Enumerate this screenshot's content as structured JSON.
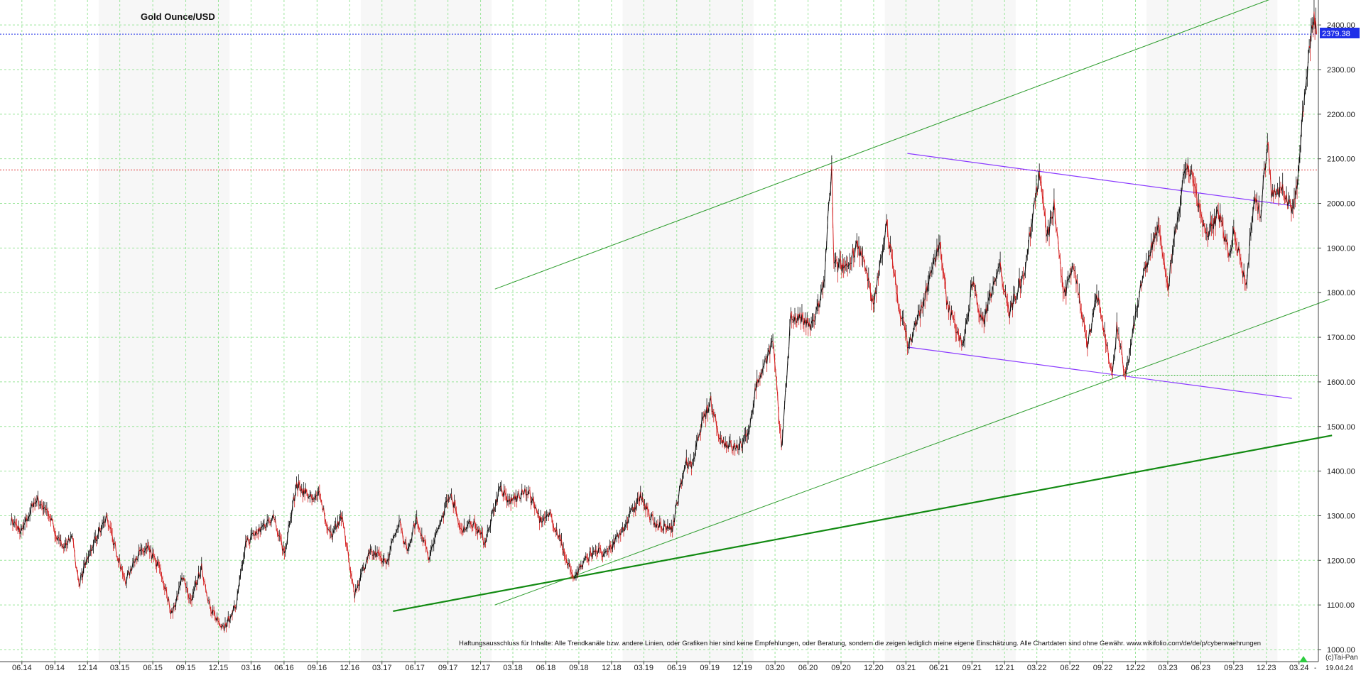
{
  "chart_data": {
    "type": "line",
    "title": "Gold Ounce/USD",
    "instrument": "Gold Ounce/USD",
    "y_ticks": [
      1000,
      1100,
      1200,
      1300,
      1400,
      1500,
      1600,
      1700,
      1800,
      1900,
      2000,
      2100,
      2200,
      2300,
      2400
    ],
    "y_tick_labels": [
      "1000.00",
      "1100.00",
      "1200.00",
      "1300.00",
      "1400.00",
      "1500.00",
      "1600.00",
      "1700.00",
      "1800.00",
      "1900.00",
      "2000.00",
      "2100.00",
      "2200.00",
      "2300.00",
      "2400.00"
    ],
    "ylim": [
      1000,
      2440
    ],
    "x_tick_labels": [
      "06.14",
      "09.14",
      "12.14",
      "03.15",
      "06.15",
      "09.15",
      "12.15",
      "03.16",
      "06.16",
      "09.16",
      "12.16",
      "03.17",
      "06.17",
      "09.17",
      "12.17",
      "03.18",
      "06.18",
      "09.18",
      "12.18",
      "03.19",
      "06.19",
      "09.19",
      "12.19",
      "03.20",
      "06.20",
      "09.20",
      "12.20",
      "03.21",
      "06.21",
      "09.21",
      "12.21",
      "03.22",
      "06.22",
      "09.22",
      "12.22",
      "03.23",
      "06.23",
      "09.23",
      "12.23",
      "03.24"
    ],
    "x_start": "2014-05",
    "x_end": "2024-04-19",
    "grid": true,
    "last_value": 2379.38,
    "last_value_label": "2379.38",
    "last_date_label": "19.04.24",
    "series": [
      {
        "points": [
          [
            "2014-05-01",
            1290
          ],
          [
            "2014-06-01",
            1265
          ],
          [
            "2014-07-10",
            1340
          ],
          [
            "2014-08-15",
            1305
          ],
          [
            "2014-09-15",
            1235
          ],
          [
            "2014-10-20",
            1245
          ],
          [
            "2014-11-07",
            1145
          ],
          [
            "2014-12-01",
            1205
          ],
          [
            "2015-01-22",
            1300
          ],
          [
            "2015-03-17",
            1150
          ],
          [
            "2015-04-15",
            1210
          ],
          [
            "2015-05-18",
            1225
          ],
          [
            "2015-06-20",
            1185
          ],
          [
            "2015-07-24",
            1080
          ],
          [
            "2015-08-24",
            1165
          ],
          [
            "2015-09-15",
            1110
          ],
          [
            "2015-10-15",
            1185
          ],
          [
            "2015-11-10",
            1085
          ],
          [
            "2015-12-17",
            1050
          ],
          [
            "2016-01-20",
            1100
          ],
          [
            "2016-02-15",
            1240
          ],
          [
            "2016-03-15",
            1260
          ],
          [
            "2016-05-02",
            1300
          ],
          [
            "2016-06-02",
            1215
          ],
          [
            "2016-07-06",
            1370
          ],
          [
            "2016-08-15",
            1340
          ],
          [
            "2016-09-08",
            1345
          ],
          [
            "2016-10-07",
            1255
          ],
          [
            "2016-11-08",
            1300
          ],
          [
            "2016-12-15",
            1125
          ],
          [
            "2017-01-25",
            1220
          ],
          [
            "2017-03-15",
            1195
          ],
          [
            "2017-04-18",
            1290
          ],
          [
            "2017-05-10",
            1220
          ],
          [
            "2017-06-06",
            1295
          ],
          [
            "2017-07-10",
            1205
          ],
          [
            "2017-09-08",
            1355
          ],
          [
            "2017-10-05",
            1270
          ],
          [
            "2017-11-15",
            1285
          ],
          [
            "2017-12-12",
            1240
          ],
          [
            "2018-01-25",
            1365
          ],
          [
            "2018-02-15",
            1330
          ],
          [
            "2018-04-12",
            1355
          ],
          [
            "2018-05-20",
            1285
          ],
          [
            "2018-06-15",
            1300
          ],
          [
            "2018-07-20",
            1225
          ],
          [
            "2018-08-16",
            1160
          ],
          [
            "2018-09-15",
            1195
          ],
          [
            "2018-10-15",
            1225
          ],
          [
            "2018-11-15",
            1210
          ],
          [
            "2019-01-15",
            1290
          ],
          [
            "2019-02-20",
            1345
          ],
          [
            "2019-03-15",
            1300
          ],
          [
            "2019-04-23",
            1270
          ],
          [
            "2019-05-20",
            1275
          ],
          [
            "2019-06-25",
            1420
          ],
          [
            "2019-07-15",
            1410
          ],
          [
            "2019-08-07",
            1500
          ],
          [
            "2019-09-04",
            1555
          ],
          [
            "2019-10-01",
            1470
          ],
          [
            "2019-11-13",
            1450
          ],
          [
            "2019-12-15",
            1475
          ],
          [
            "2020-01-08",
            1590
          ],
          [
            "2020-02-24",
            1690
          ],
          [
            "2020-03-19",
            1450
          ],
          [
            "2020-04-14",
            1745
          ],
          [
            "2020-05-15",
            1740
          ],
          [
            "2020-06-10",
            1720
          ],
          [
            "2020-07-15",
            1810
          ],
          [
            "2020-07-28",
            1980
          ],
          [
            "2020-08-06",
            2075
          ],
          [
            "2020-08-12",
            1860
          ],
          [
            "2020-09-22",
            1860
          ],
          [
            "2020-10-15",
            1915
          ],
          [
            "2020-11-09",
            1850
          ],
          [
            "2020-11-30",
            1765
          ],
          [
            "2021-01-06",
            1955
          ],
          [
            "2021-02-05",
            1790
          ],
          [
            "2021-03-08",
            1680
          ],
          [
            "2021-04-15",
            1770
          ],
          [
            "2021-05-15",
            1855
          ],
          [
            "2021-06-01",
            1915
          ],
          [
            "2021-06-25",
            1770
          ],
          [
            "2021-08-09",
            1680
          ],
          [
            "2021-09-03",
            1830
          ],
          [
            "2021-09-29",
            1725
          ],
          [
            "2021-11-16",
            1870
          ],
          [
            "2021-12-15",
            1755
          ],
          [
            "2022-01-25",
            1850
          ],
          [
            "2022-03-08",
            2070
          ],
          [
            "2022-03-30",
            1920
          ],
          [
            "2022-04-18",
            1995
          ],
          [
            "2022-05-16",
            1785
          ],
          [
            "2022-06-10",
            1870
          ],
          [
            "2022-07-20",
            1685
          ],
          [
            "2022-08-15",
            1800
          ],
          [
            "2022-09-28",
            1615
          ],
          [
            "2022-10-10",
            1720
          ],
          [
            "2022-11-03",
            1615
          ],
          [
            "2022-12-15",
            1810
          ],
          [
            "2023-02-02",
            1955
          ],
          [
            "2023-02-28",
            1805
          ],
          [
            "2023-04-13",
            2050
          ],
          [
            "2023-05-04",
            2080
          ],
          [
            "2023-06-15",
            1920
          ],
          [
            "2023-07-20",
            1980
          ],
          [
            "2023-08-21",
            1885
          ],
          [
            "2023-09-01",
            1945
          ],
          [
            "2023-10-05",
            1815
          ],
          [
            "2023-10-27",
            2005
          ],
          [
            "2023-11-16",
            1980
          ],
          [
            "2023-12-04",
            2145
          ],
          [
            "2023-12-15",
            2020
          ],
          [
            "2024-01-10",
            2035
          ],
          [
            "2024-02-14",
            1985
          ],
          [
            "2024-03-01",
            2080
          ],
          [
            "2024-03-08",
            2180
          ],
          [
            "2024-04-12",
            2430
          ],
          [
            "2024-04-19",
            2379
          ]
        ]
      }
    ],
    "annotations": [
      {
        "kind": "hline",
        "value": 2379.38,
        "color": "#1f2fe8",
        "style": "dotted"
      },
      {
        "kind": "hline",
        "value": 2075,
        "color": "#e03a3a",
        "style": "dotted"
      },
      {
        "kind": "hline",
        "value": 1615,
        "color": "#22aa22",
        "style": "dotted",
        "from": "2022-09-01"
      },
      {
        "kind": "segment",
        "from": [
          "2017-04-01",
          1086
        ],
        "to": [
          "2024-06-01",
          1480
        ],
        "color": "#128a12",
        "width": 2.2
      },
      {
        "kind": "segment",
        "from": [
          "2018-01-10",
          1100
        ],
        "to": [
          "2024-05-25",
          1785
        ],
        "color": "#2f9e2f",
        "width": 1
      },
      {
        "kind": "segment",
        "from": [
          "2018-01-10",
          1808
        ],
        "to": [
          "2023-12-20",
          2460
        ],
        "color": "#2f9e2f",
        "width": 1
      },
      {
        "kind": "segment",
        "from": [
          "2021-03-05",
          2112
        ],
        "to": [
          "2024-02-10",
          1995
        ],
        "color": "#8b3bff",
        "width": 1.2
      },
      {
        "kind": "segment",
        "from": [
          "2021-03-05",
          1678
        ],
        "to": [
          "2024-02-10",
          1563
        ],
        "color": "#8b3bff",
        "width": 1.2
      }
    ],
    "colors": {
      "grid": "#9be59b",
      "price_up": "#111111",
      "price_down": "#d42020",
      "shade": "#f7f7f7"
    }
  },
  "disclaimer": "Haftungsausschluss für Inhalte: Alle Trendkanäle bzw. andere Linien, oder Grafiken hier sind keine Empfehlungen, oder Beratung, sondern die zeigen lediglich meine eigene Einschätzung. Alle Chartdaten sind ohne Gewähr. www.wikifolio.com/de/de/p/cyberwaehrungen",
  "copyright": "(c)Tai-Pan"
}
